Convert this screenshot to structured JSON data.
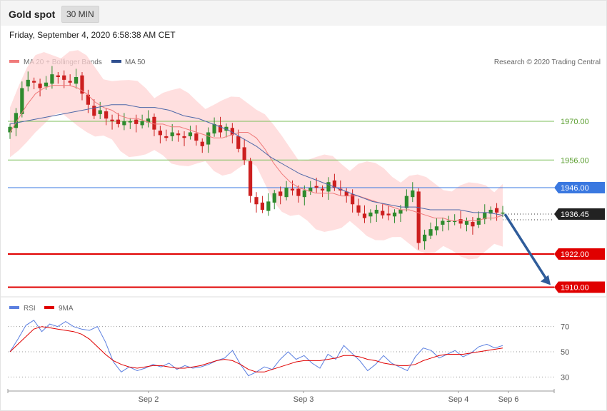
{
  "header": {
    "title": "Gold spot",
    "timeframe": "30 MIN",
    "datetime": "Friday, September 4, 2020 6:58:38 AM CET"
  },
  "legend": {
    "ma20_label": "MA 20 + Bollinger Bands",
    "ma50_label": "MA 50",
    "credit": "Research © 2020 Trading Central",
    "rsi_label": "RSI",
    "rsi_ma_label": "9MA"
  },
  "colors": {
    "bull": "#2e8b2e",
    "bear": "#cc1f1f",
    "bands": "#ffd4d4",
    "ma20": "#f07b7b",
    "ma50": "#4f68a8",
    "resistance": "#7cbf5a",
    "pivot": "#3a78e0",
    "support": "#e00000",
    "arrow": "#2f5c9a",
    "rsi": "#5b7fe0",
    "rsi_ma": "#e00000"
  },
  "chart_data": [
    {
      "type": "candlestick",
      "x_labels": [
        "Sep 2",
        "Sep 3",
        "Sep 4",
        "Sep 6"
      ],
      "ylim": [
        1906,
        1986
      ],
      "current_price": "1936.45",
      "levels": [
        {
          "value": 1970.0,
          "label": "1970.00",
          "kind": "resistance"
        },
        {
          "value": 1956.0,
          "label": "1956.00",
          "kind": "resistance"
        },
        {
          "value": 1946.0,
          "label": "1946.00",
          "kind": "pivot"
        },
        {
          "value": 1922.0,
          "label": "1922.00",
          "kind": "support"
        },
        {
          "value": 1910.0,
          "label": "1910.00",
          "kind": "support"
        }
      ],
      "close_series": [
        1968,
        1973,
        1982,
        1985,
        1984,
        1982,
        1984,
        1987,
        1986,
        1985,
        1984,
        1986,
        1980,
        1976,
        1972,
        1974,
        1971,
        1970,
        1969,
        1970,
        1970,
        1969,
        1970,
        1971,
        1967,
        1965,
        1964,
        1966,
        1965,
        1964,
        1966,
        1963,
        1961,
        1966,
        1969,
        1966,
        1968,
        1965,
        1960,
        1956,
        1943,
        1940,
        1938,
        1941,
        1944,
        1943,
        1946,
        1945,
        1943,
        1945,
        1946,
        1946,
        1945,
        1948,
        1946,
        1945,
        1943,
        1940,
        1937,
        1935,
        1937,
        1938,
        1936,
        1936,
        1937,
        1938,
        1943,
        1945,
        1926,
        1929,
        1931,
        1932,
        1934,
        1934,
        1934,
        1933,
        1934,
        1932,
        1935,
        1937,
        1938,
        1937,
        1937
      ],
      "ma20_series": [
        1966,
        1971,
        1976,
        1980,
        1982,
        1983,
        1983,
        1983,
        1982,
        1980,
        1977,
        1975,
        1974,
        1972,
        1971,
        1971,
        1970,
        1969,
        1969,
        1968,
        1968,
        1967,
        1966,
        1965,
        1964,
        1964,
        1965,
        1966,
        1966,
        1964,
        1960,
        1955,
        1951,
        1948,
        1946,
        1945,
        1944,
        1944,
        1944,
        1943,
        1943,
        1943,
        1942,
        1941,
        1940,
        1939,
        1938,
        1938,
        1937,
        1936,
        1935,
        1935,
        1934,
        1934,
        1934,
        1934,
        1935,
        1935,
        1936
      ],
      "ma50_series": [
        1969,
        1970,
        1971,
        1972,
        1973,
        1974,
        1975,
        1976,
        1976,
        1975,
        1975,
        1974,
        1972,
        1971,
        1969,
        1967,
        1964,
        1961,
        1957,
        1954,
        1951,
        1949,
        1947,
        1945,
        1943,
        1941,
        1940,
        1939,
        1939,
        1938,
        1938,
        1938,
        1937,
        1937,
        1936
      ],
      "forecast_arrow": {
        "from": 1936.45,
        "to": 1910.0
      }
    },
    {
      "type": "line",
      "name": "RSI",
      "ylim": [
        20,
        80
      ],
      "y_ticks": [
        "70",
        "50",
        "30"
      ],
      "series": [
        {
          "name": "RSI",
          "values": [
            50,
            60,
            71,
            75,
            66,
            72,
            70,
            74,
            70,
            68,
            67,
            70,
            58,
            42,
            34,
            38,
            35,
            37,
            40,
            38,
            41,
            36,
            39,
            37,
            38,
            40,
            43,
            45,
            51,
            40,
            31,
            34,
            38,
            36,
            44,
            50,
            44,
            47,
            41,
            37,
            48,
            44,
            55,
            49,
            43,
            35,
            40,
            47,
            41,
            38,
            35,
            46,
            53,
            51,
            45,
            48,
            51,
            46,
            49,
            54,
            56,
            53,
            55
          ]
        },
        {
          "name": "9MA",
          "values": [
            50,
            56,
            62,
            68,
            70,
            69,
            68,
            67,
            66,
            64,
            60,
            54,
            48,
            43,
            40,
            38,
            37,
            38,
            39,
            39,
            38,
            37,
            37,
            38,
            39,
            41,
            43,
            44,
            43,
            40,
            36,
            34,
            34,
            36,
            38,
            40,
            42,
            43,
            43,
            43,
            44,
            45,
            47,
            47,
            46,
            44,
            43,
            41,
            40,
            39,
            39,
            40,
            43,
            45,
            47,
            48,
            48,
            48,
            49,
            50,
            51,
            52,
            53
          ]
        }
      ]
    }
  ]
}
